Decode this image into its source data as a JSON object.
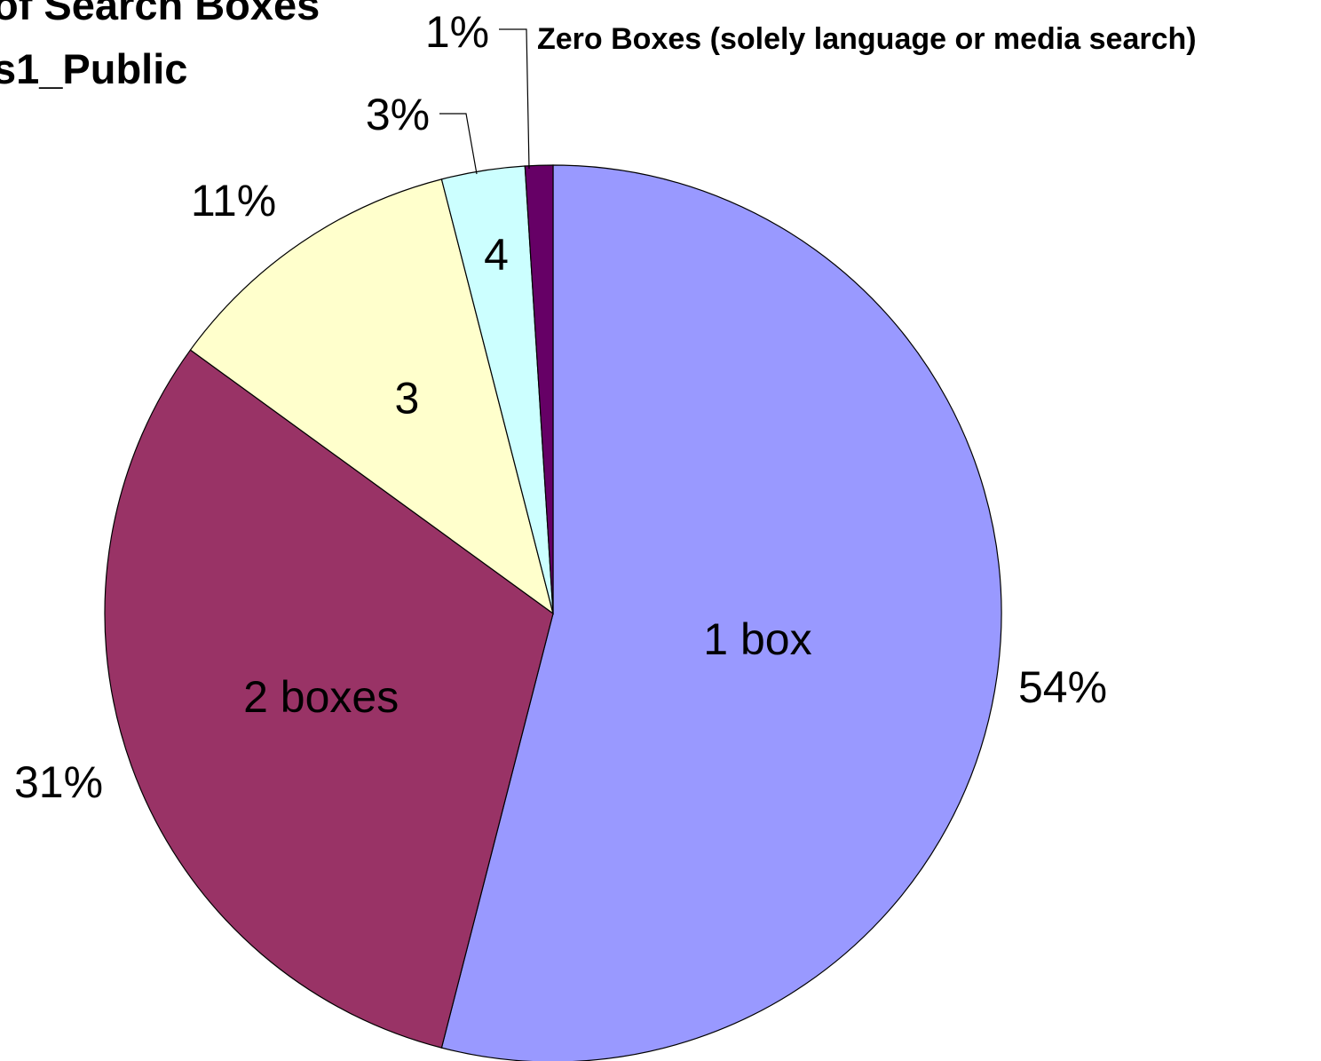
{
  "chart_data": {
    "type": "pie",
    "title_lines": [
      "of Search Boxes",
      "s1_Public"
    ],
    "slices": [
      {
        "label": "1 box",
        "value": 54,
        "pct_label": "54%",
        "color": "#9999FF"
      },
      {
        "label": "2 boxes",
        "value": 31,
        "pct_label": "31%",
        "color": "#993366"
      },
      {
        "label": "3",
        "value": 11,
        "pct_label": "11%",
        "color": "#FFFFCC"
      },
      {
        "label": "4",
        "value": 3,
        "pct_label": "3%",
        "color": "#CCFFFF"
      },
      {
        "label": "Zero Boxes (solely language or media search)",
        "value": 1,
        "pct_label": "1%",
        "color": "#660066"
      }
    ],
    "start_angle_deg": 0,
    "direction": "clockwise",
    "legend": "none"
  }
}
